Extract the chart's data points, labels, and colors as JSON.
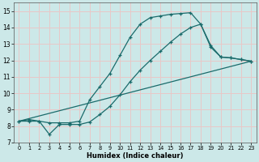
{
  "xlabel": "Humidex (Indice chaleur)",
  "xlim": [
    -0.5,
    23.5
  ],
  "ylim": [
    7,
    15.5
  ],
  "yticks": [
    7,
    8,
    9,
    10,
    11,
    12,
    13,
    14,
    15
  ],
  "xticks": [
    0,
    1,
    2,
    3,
    4,
    5,
    6,
    7,
    8,
    9,
    10,
    11,
    12,
    13,
    14,
    15,
    16,
    17,
    18,
    19,
    20,
    21,
    22,
    23
  ],
  "background_color": "#cce8e8",
  "grid_color": "#e8c8c8",
  "line_color": "#1a6b6b",
  "curve1_x": [
    0,
    1,
    2,
    3,
    4,
    5,
    6,
    7,
    8,
    9,
    10,
    11,
    12,
    13,
    14,
    15,
    16,
    17,
    18,
    19,
    20,
    21,
    22,
    23
  ],
  "curve1_y": [
    8.3,
    8.4,
    8.3,
    8.2,
    8.2,
    8.2,
    8.3,
    9.6,
    10.4,
    11.2,
    12.3,
    13.4,
    14.2,
    14.6,
    14.7,
    14.8,
    14.85,
    14.9,
    14.2,
    12.8,
    12.2,
    12.15,
    12.05,
    11.95
  ],
  "curve1_markers": true,
  "curve2_x": [
    0,
    1,
    2,
    3,
    4,
    5,
    6,
    7,
    8,
    9,
    10,
    11,
    12,
    13,
    14,
    15,
    16,
    17,
    18,
    19,
    20,
    21,
    22,
    23
  ],
  "curve2_y": [
    8.3,
    8.3,
    8.3,
    7.5,
    8.1,
    8.1,
    8.1,
    8.25,
    8.7,
    9.2,
    9.9,
    10.7,
    11.4,
    12.0,
    12.55,
    13.1,
    13.6,
    14.0,
    14.2,
    12.9,
    12.2,
    12.15,
    12.05,
    11.95
  ],
  "curve2_markers": true,
  "curve3_x": [
    0,
    23
  ],
  "curve3_y": [
    8.3,
    11.95
  ],
  "curve3_markers": false
}
